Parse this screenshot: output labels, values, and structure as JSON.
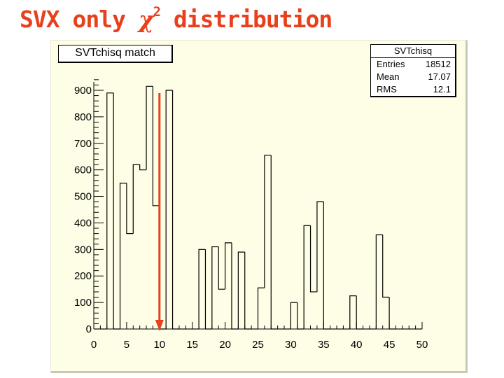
{
  "slide": {
    "title_prefix": "SVX only ",
    "title_symbol": "χ",
    "title_sup": "2",
    "title_suffix": " distribution"
  },
  "histogram": {
    "title": "SVTchisq match",
    "stats": {
      "title": "SVTchisq",
      "entries_label": "Entries",
      "entries_value": "18512",
      "mean_label": "Mean",
      "mean_value": "17.07",
      "rms_label": "RMS",
      "rms_value": "12.1"
    }
  },
  "colors": {
    "title": "#e8401c",
    "marker": "#e8401c",
    "frame_bg": "#fefee6",
    "histo_line": "#000000"
  },
  "chart_data": {
    "type": "bar",
    "title": "SVTchisq match",
    "xlabel": "",
    "ylabel": "",
    "xlim": [
      0,
      50
    ],
    "ylim": [
      0,
      950
    ],
    "grid": false,
    "bin_width": 1,
    "bin_edges_start": 0,
    "values": [
      0,
      0,
      890,
      0,
      550,
      360,
      620,
      600,
      915,
      465,
      0,
      900,
      0,
      0,
      0,
      0,
      300,
      0,
      310,
      150,
      325,
      0,
      290,
      0,
      0,
      155,
      655,
      0,
      0,
      0,
      100,
      0,
      390,
      140,
      480,
      0,
      0,
      0,
      0,
      125,
      0,
      0,
      0,
      355,
      120,
      0,
      0,
      0,
      0,
      0
    ],
    "x_ticks": [
      0,
      5,
      10,
      15,
      20,
      25,
      30,
      35,
      40,
      45,
      50
    ],
    "y_ticks": [
      0,
      100,
      200,
      300,
      400,
      500,
      600,
      700,
      800,
      900
    ],
    "marker_x": 10
  }
}
